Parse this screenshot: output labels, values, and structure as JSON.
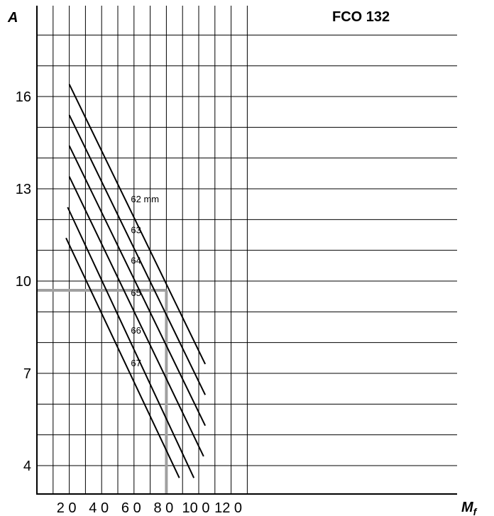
{
  "chart_data": {
    "type": "line",
    "title": "FCO 132",
    "ylabel": "A",
    "xlabel": "M",
    "xlabel_sub": "f",
    "x_ticks": [
      20,
      40,
      60,
      80,
      100,
      120
    ],
    "x_tick_labels": [
      "2 0",
      "4 0",
      "6 0",
      "8 0",
      "10 0",
      "12 0"
    ],
    "y_ticks": [
      4,
      7,
      10,
      13,
      16
    ],
    "y_tick_labels": [
      "4",
      "7",
      "10",
      "13",
      "16"
    ],
    "xlim": [
      0,
      130
    ],
    "ylim": [
      2.5,
      18.5
    ],
    "grid": true,
    "series": [
      {
        "name": "62 mm",
        "x": [
          20,
          104
        ],
        "y": [
          16.4,
          7.3
        ]
      },
      {
        "name": "63",
        "x": [
          20,
          104
        ],
        "y": [
          15.4,
          6.3
        ]
      },
      {
        "name": "64",
        "x": [
          20,
          104
        ],
        "y": [
          14.4,
          5.3
        ]
      },
      {
        "name": "65",
        "x": [
          20,
          103
        ],
        "y": [
          13.4,
          4.3
        ]
      },
      {
        "name": "66",
        "x": [
          19,
          97
        ],
        "y": [
          12.4,
          3.6
        ]
      },
      {
        "name": "67",
        "x": [
          18,
          88
        ],
        "y": [
          11.4,
          3.6
        ]
      }
    ],
    "reference": {
      "x": 80,
      "y": 9.7
    }
  }
}
